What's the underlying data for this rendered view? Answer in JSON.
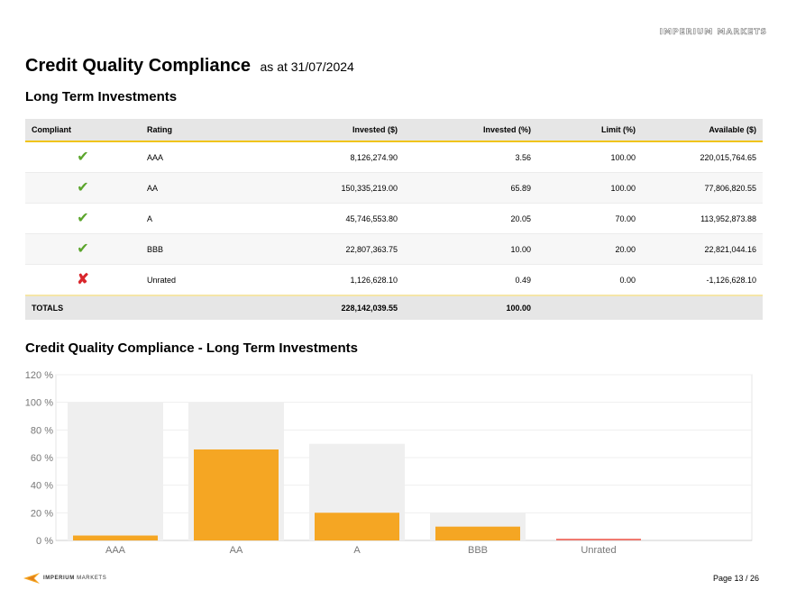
{
  "watermark": "IMPERIUM MARKETS",
  "header": {
    "title": "Credit Quality Compliance",
    "subtitle": "as at 31/07/2024"
  },
  "section1_title": "Long Term Investments",
  "table": {
    "columns": [
      "Compliant",
      "Rating",
      "Invested ($)",
      "Invested (%)",
      "Limit (%)",
      "Available ($)"
    ],
    "rows": [
      {
        "compliant": "✔",
        "rating": "AAA",
        "invested": "8,126,274.90",
        "invested_pct": "3.56",
        "limit": "100.00",
        "available": "220,015,764.65"
      },
      {
        "compliant": "✔",
        "rating": "AA",
        "invested": "150,335,219.00",
        "invested_pct": "65.89",
        "limit": "100.00",
        "available": "77,806,820.55"
      },
      {
        "compliant": "✔",
        "rating": "A",
        "invested": "45,746,553.80",
        "invested_pct": "20.05",
        "limit": "70.00",
        "available": "113,952,873.88"
      },
      {
        "compliant": "✔",
        "rating": "BBB",
        "invested": "22,807,363.75",
        "invested_pct": "10.00",
        "limit": "20.00",
        "available": "22,821,044.16"
      },
      {
        "compliant": "✘",
        "rating": "Unrated",
        "invested": "1,126,628.10",
        "invested_pct": "0.49",
        "limit": "0.00",
        "available": "-1,126,628.10"
      }
    ],
    "totals": {
      "label": "TOTALS",
      "invested": "228,142,039.55",
      "invested_pct": "100.00"
    }
  },
  "section2_title": "Credit Quality Compliance - Long Term Investments",
  "chart_data": {
    "type": "bar",
    "title": "Credit Quality Compliance - Long Term Investments",
    "categories": [
      "AAA",
      "AA",
      "A",
      "BBB",
      "Unrated"
    ],
    "series": [
      {
        "values": [
          3.56,
          65.89,
          20.05,
          10.0,
          0.49
        ]
      },
      {
        "values": [
          100,
          100,
          70,
          20,
          0
        ]
      }
    ],
    "yticks": [
      "0 %",
      "20 %",
      "40 %",
      "60 %",
      "80 %",
      "100 %",
      "120 %"
    ],
    "ylim": [
      0,
      120
    ],
    "grid": true,
    "colors": {
      "invested": "#f5a623",
      "limit": "#efefef",
      "noncompliant": "#f07a70"
    }
  },
  "footer": {
    "brand_bold": "IMPERIUM",
    "brand_light": "MARKETS",
    "page": "Page 13 / 26"
  }
}
